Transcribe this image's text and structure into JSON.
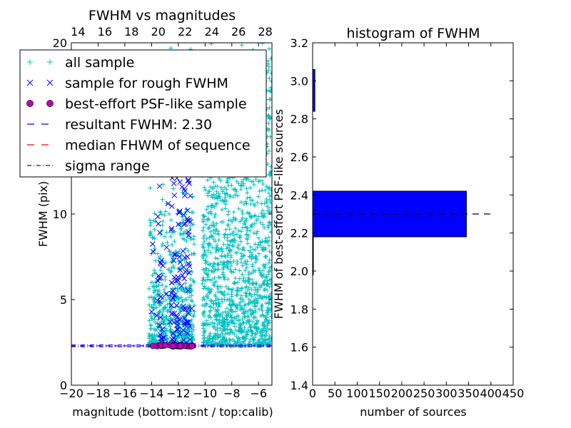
{
  "chart_data": [
    {
      "type": "scatter",
      "title": "FWHM vs magnitudes",
      "xlabel": "magnitude (bottom:isnt / top:calib)",
      "ylabel": "FWHM (pix)",
      "xlim": [
        -20,
        -5
      ],
      "ylim": [
        0,
        20
      ],
      "x_ticks": [
        "−20",
        "−18",
        "−16",
        "−14",
        "−12",
        "−10",
        "−8",
        "−6"
      ],
      "x_tick_values": [
        -20,
        -18,
        -16,
        -14,
        -12,
        -10,
        -8,
        -6
      ],
      "top_ticks": [
        "14",
        "16",
        "18",
        "20",
        "22",
        "24",
        "26",
        "28"
      ],
      "top_tick_values": [
        -19.5,
        -17.5,
        -15.5,
        -13.5,
        -11.5,
        -9.5,
        -7.5,
        -5.5
      ],
      "top_xlim_label": "20",
      "y_ticks": [
        "0",
        "5",
        "10"
      ],
      "y_tick_values": [
        0,
        5,
        10
      ],
      "legend": {
        "position": "top",
        "entries": [
          {
            "label": "all sample",
            "marker": "plus",
            "color": "#00bfbf"
          },
          {
            "label": "sample for rough FWHM",
            "marker": "x",
            "color": "#0000ff"
          },
          {
            "label": "best-effort PSF-like sample",
            "marker": "circle",
            "color": "#bf00bf"
          },
          {
            "label": "resultant FWHM: 2.30",
            "marker": "dashed",
            "color": "#0000ff"
          },
          {
            "label": "median FHWM of sequence",
            "marker": "dashed",
            "color": "#ff0000"
          },
          {
            "label": "sigma range",
            "marker": "dashdot",
            "color": "#0000ff"
          }
        ]
      },
      "series": [
        {
          "name": "all sample",
          "color": "#00bfbf",
          "clusters": [
            {
              "x_range": [
                -14.2,
                -10.8
              ],
              "y_base": 2.3,
              "n": 700
            },
            {
              "x_range": [
                -10.2,
                -5.0
              ],
              "y_base": 2.3,
              "n": 1600
            }
          ]
        },
        {
          "name": "sample for rough FWHM",
          "color": "#0000ff",
          "x_range": [
            -14.0,
            -10.8
          ],
          "y_range": [
            2.3,
            12.5
          ],
          "n": 140
        },
        {
          "name": "best-effort PSF-like sample",
          "color": "#bf00bf",
          "x_range": [
            -13.9,
            -10.9
          ],
          "y": 2.3,
          "n": 40
        }
      ],
      "lines": [
        {
          "name": "resultant FWHM",
          "y": 2.3,
          "color": "#0000ff",
          "style": "dashed"
        },
        {
          "name": "median FHWM of sequence",
          "y": 2.3,
          "color": "#ff0000",
          "style": "dashed"
        },
        {
          "name": "sigma range",
          "y_values": [
            2.25,
            2.35
          ],
          "color": "#0000ff",
          "style": "dashdot"
        }
      ]
    },
    {
      "type": "bar",
      "orientation": "horizontal",
      "title": "histogram of FWHM",
      "xlabel": "number of sources",
      "ylabel": "FWHM of best-effort PSF-like sources",
      "xlim": [
        0,
        450
      ],
      "ylim": [
        1.4,
        3.2
      ],
      "x_ticks": [
        "0",
        "50",
        "100",
        "150",
        "200",
        "250",
        "300",
        "350",
        "400",
        "450"
      ],
      "x_tick_values": [
        0,
        50,
        100,
        150,
        200,
        250,
        300,
        350,
        400,
        450
      ],
      "y_ticks": [
        "1.4",
        "1.6",
        "1.8",
        "2.0",
        "2.2",
        "2.4",
        "2.6",
        "2.8",
        "3.0",
        "3.2"
      ],
      "y_tick_values": [
        1.4,
        1.6,
        1.8,
        2.0,
        2.2,
        2.4,
        2.6,
        2.8,
        3.0,
        3.2
      ],
      "bar_color": "#0000ff",
      "bins": [
        {
          "y0": 1.98,
          "y1": 2.18,
          "count": 1
        },
        {
          "y0": 2.18,
          "y1": 2.42,
          "count": 345
        },
        {
          "y0": 2.42,
          "y1": 2.84,
          "count": 0
        },
        {
          "y0": 2.84,
          "y1": 3.06,
          "count": 5
        }
      ],
      "reference_line": {
        "y": 2.3,
        "x_range": [
          0,
          410
        ],
        "color": "#000000",
        "style": "dashed"
      }
    }
  ]
}
